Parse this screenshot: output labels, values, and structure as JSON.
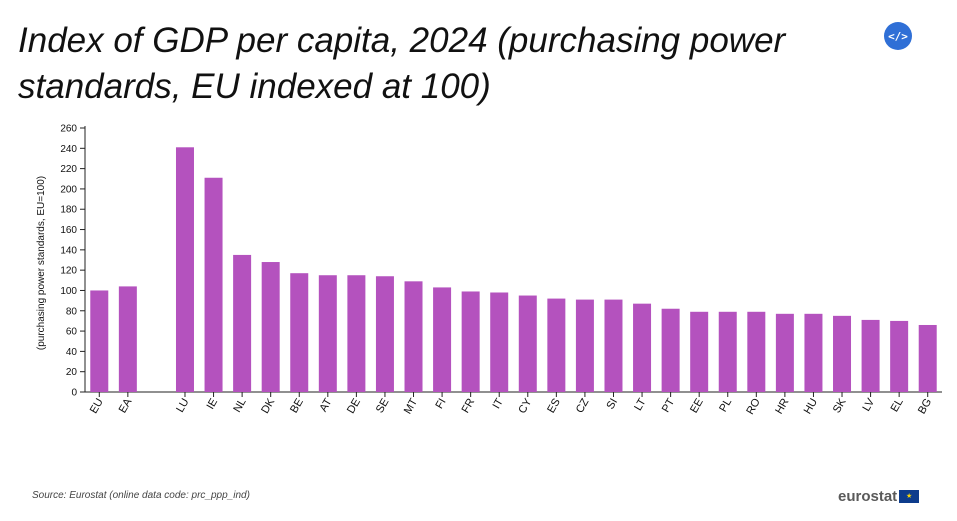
{
  "header": {
    "title": "Index of GDP per capita, 2024 (purchasing power standards, EU indexed at 100)",
    "embed_icon": "</>"
  },
  "footer": {
    "source": "Source: Eurostat (online data code: prc_ppp_ind)",
    "logo_text": "eurostat",
    "flag_star": "★"
  },
  "colors": {
    "bar": "#b452be",
    "axis": "#222222",
    "text": "#111111",
    "embed": "#2f6fd6"
  },
  "chart_data": {
    "type": "bar",
    "title": "Index of GDP per capita, 2024 (purchasing power standards, EU indexed at 100)",
    "xlabel": "",
    "ylabel": "(purchasing power standards, EU=100)",
    "ylim": [
      0,
      260
    ],
    "yticks": [
      0,
      20,
      40,
      60,
      80,
      100,
      120,
      140,
      160,
      180,
      200,
      220,
      240,
      260
    ],
    "categories": [
      "EU",
      "EA",
      "",
      "LU",
      "IE",
      "NL",
      "DK",
      "BE",
      "AT",
      "DE",
      "SE",
      "MT",
      "FI",
      "FR",
      "IT",
      "CY",
      "ES",
      "CZ",
      "SI",
      "LT",
      "PT",
      "EE",
      "PL",
      "RO",
      "HR",
      "HU",
      "SK",
      "LV",
      "EL",
      "BG"
    ],
    "values": [
      100,
      104,
      null,
      241,
      211,
      135,
      128,
      117,
      115,
      115,
      114,
      109,
      103,
      99,
      98,
      95,
      92,
      91,
      91,
      87,
      82,
      79,
      79,
      79,
      77,
      77,
      75,
      71,
      70,
      66
    ]
  }
}
